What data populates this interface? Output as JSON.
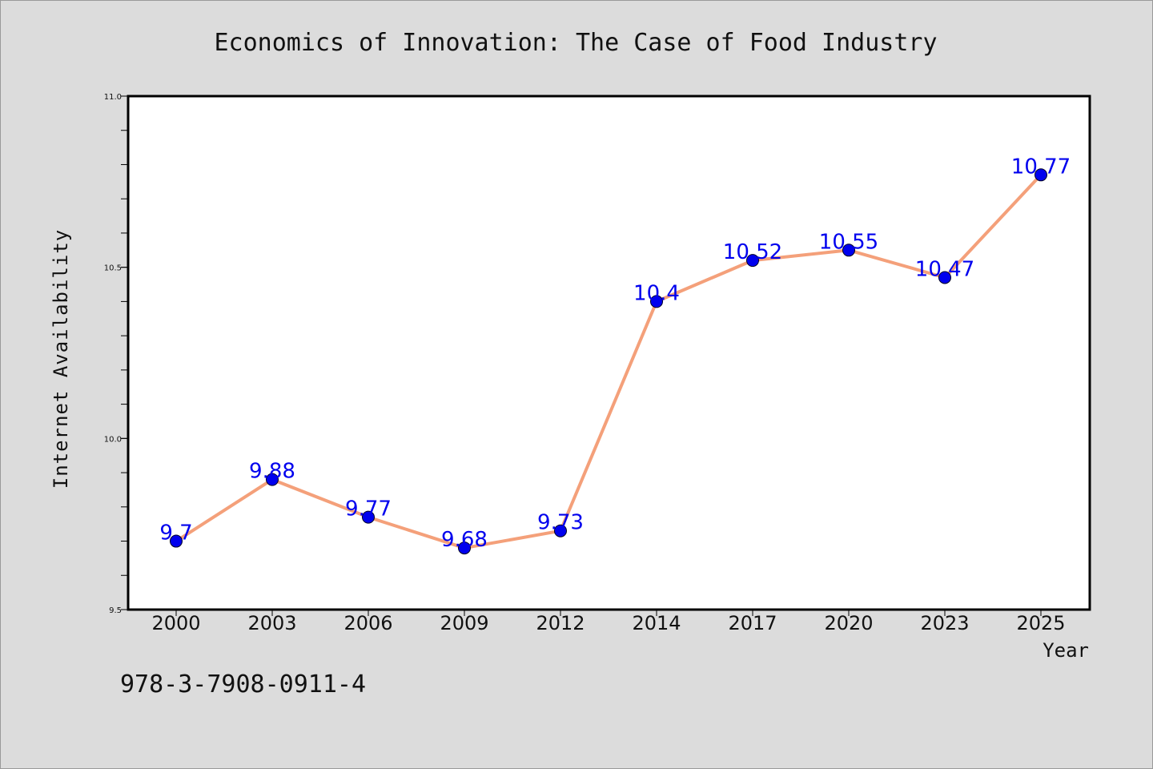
{
  "chart_data": {
    "type": "line",
    "title": "Economics of Innovation: The Case of Food Industry",
    "xlabel": "Year",
    "ylabel": "Internet Availability",
    "categories": [
      "2000",
      "2003",
      "2006",
      "2009",
      "2012",
      "2014",
      "2017",
      "2020",
      "2023",
      "2025"
    ],
    "values": [
      9.7,
      9.88,
      9.77,
      9.68,
      9.73,
      10.4,
      10.52,
      10.55,
      10.47,
      10.77
    ],
    "data_labels": [
      "9.7",
      "9.88",
      "9.77",
      "9.68",
      "9.73",
      "10.4",
      "10.52",
      "10.55",
      "10.47",
      "10.77"
    ],
    "ylim": [
      9.5,
      11.0
    ],
    "yticks": [
      "9.5",
      "10.0",
      "10.5",
      "11.0"
    ],
    "grid": false,
    "line_color": "#f4a07a",
    "marker_color": "#0000ee",
    "label_color": "#0000ee"
  },
  "footer": {
    "isbn": "978-3-7908-0911-4"
  }
}
